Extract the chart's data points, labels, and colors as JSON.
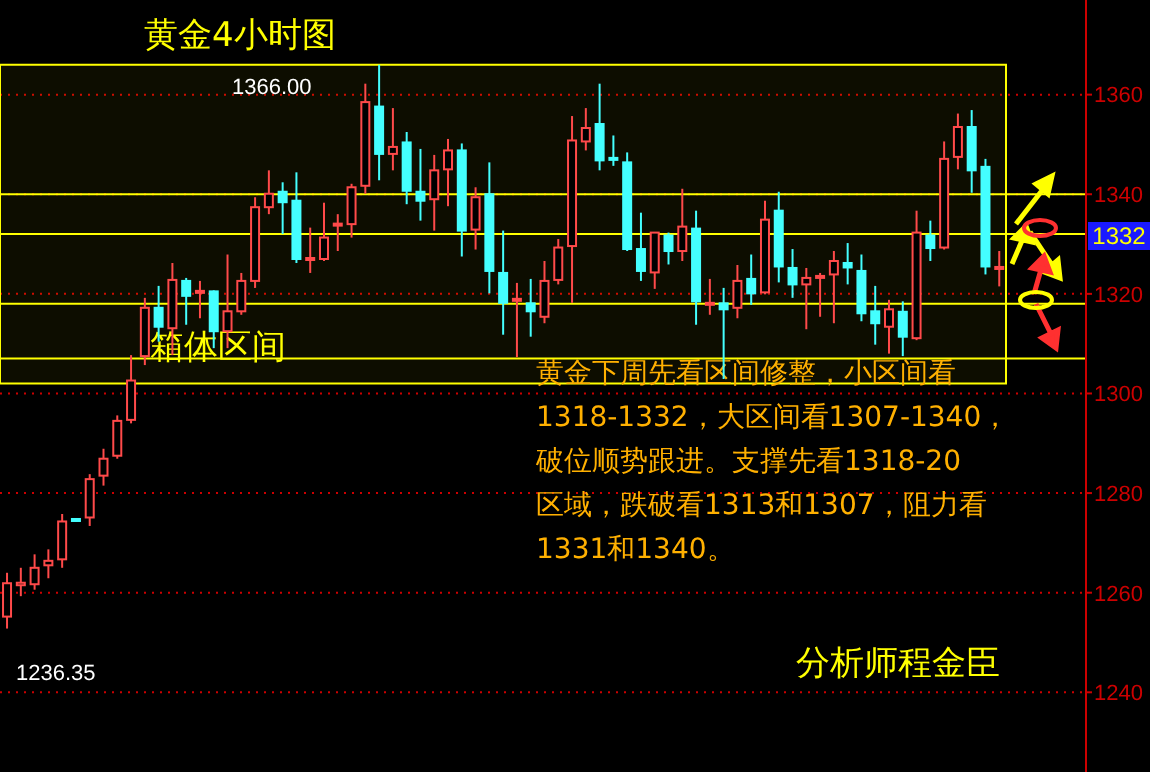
{
  "chart_data": {
    "type": "candlestick",
    "title": "黄金4小时图",
    "categories": [
      null,
      null,
      null,
      null,
      null,
      null,
      null,
      null,
      null,
      null,
      null,
      null,
      null,
      null,
      null,
      null,
      null,
      null,
      null,
      null,
      null,
      null,
      null,
      null,
      null,
      null,
      null,
      null,
      null,
      null,
      null,
      null,
      null,
      null,
      null,
      null,
      null,
      null,
      null,
      null,
      null,
      null,
      null,
      null,
      null,
      null,
      null,
      null,
      null,
      null,
      null,
      null,
      null,
      null,
      null,
      null,
      null,
      null,
      null,
      null,
      null,
      null,
      null,
      null,
      null,
      null,
      null,
      null,
      null,
      null,
      null,
      null,
      null
    ],
    "ohlc": [
      [
        1255.2,
        1264.0,
        1252.8,
        1261.9
      ],
      [
        1261.5,
        1265.0,
        1259.3,
        1262.0
      ],
      [
        1261.7,
        1267.7,
        1260.6,
        1265.0
      ],
      [
        1265.5,
        1268.7,
        1262.9,
        1266.4
      ],
      [
        1266.7,
        1275.8,
        1265.0,
        1274.3
      ],
      [
        1274.8,
        1275.0,
        1274.3,
        1274.5
      ],
      [
        1275.1,
        1283.8,
        1273.4,
        1282.8
      ],
      [
        1283.5,
        1288.9,
        1281.5,
        1286.9
      ],
      [
        1287.5,
        1295.6,
        1286.9,
        1294.5
      ],
      [
        1294.7,
        1307.7,
        1294.0,
        1302.6
      ],
      [
        1307.5,
        1319.2,
        1305.7,
        1317.2
      ],
      [
        1317.2,
        1321.6,
        1310.4,
        1313.4
      ],
      [
        1313.1,
        1326.2,
        1307.7,
        1322.8
      ],
      [
        1322.6,
        1323.2,
        1313.8,
        1319.6
      ],
      [
        1320.4,
        1322.6,
        1315.1,
        1320.6
      ],
      [
        1320.5,
        1320.7,
        1309.1,
        1312.5
      ],
      [
        1312.5,
        1327.9,
        1309.1,
        1316.5
      ],
      [
        1316.5,
        1324.2,
        1315.8,
        1322.6
      ],
      [
        1322.6,
        1339.4,
        1321.2,
        1337.4
      ],
      [
        1337.4,
        1344.8,
        1336.0,
        1340.1
      ],
      [
        1340.5,
        1342.4,
        1332.0,
        1338.4
      ],
      [
        1338.7,
        1344.4,
        1326.2,
        1327.0
      ],
      [
        1327.0,
        1333.3,
        1324.2,
        1327.2
      ],
      [
        1327.0,
        1338.3,
        1326.6,
        1331.3
      ],
      [
        1333.8,
        1336.0,
        1328.6,
        1334.1
      ],
      [
        1334.0,
        1342.1,
        1331.3,
        1341.4
      ],
      [
        1341.7,
        1362.2,
        1340.1,
        1358.5
      ],
      [
        1357.6,
        1366.0,
        1342.8,
        1348.1
      ],
      [
        1348.1,
        1357.3,
        1344.8,
        1349.5
      ],
      [
        1350.4,
        1352.5,
        1338.0,
        1340.7
      ],
      [
        1340.5,
        1349.1,
        1334.7,
        1338.7
      ],
      [
        1339.0,
        1347.9,
        1332.7,
        1344.8
      ],
      [
        1345.0,
        1351.1,
        1337.6,
        1348.8
      ],
      [
        1348.8,
        1350.2,
        1327.5,
        1332.7
      ],
      [
        1332.9,
        1341.4,
        1328.9,
        1339.4
      ],
      [
        1340.0,
        1346.4,
        1320.1,
        1324.6
      ],
      [
        1324.2,
        1332.7,
        1311.8,
        1318.2
      ],
      [
        1318.8,
        1322.2,
        1307.3,
        1319.0
      ],
      [
        1318.1,
        1323.0,
        1311.4,
        1316.5
      ],
      [
        1315.4,
        1326.6,
        1314.1,
        1322.6
      ],
      [
        1322.8,
        1331.0,
        1321.9,
        1329.3
      ],
      [
        1329.6,
        1355.7,
        1318.2,
        1350.8
      ],
      [
        1350.6,
        1357.3,
        1348.8,
        1353.3
      ],
      [
        1354.1,
        1362.2,
        1344.8,
        1346.8
      ],
      [
        1347.3,
        1351.8,
        1345.7,
        1347.1
      ],
      [
        1346.4,
        1348.4,
        1328.6,
        1329.0
      ],
      [
        1329.0,
        1336.3,
        1322.6,
        1324.6
      ],
      [
        1324.3,
        1332.3,
        1321.0,
        1332.3
      ],
      [
        1331.7,
        1332.3,
        1325.9,
        1328.6
      ],
      [
        1328.6,
        1341.1,
        1326.6,
        1333.5
      ],
      [
        1333.1,
        1336.7,
        1313.8,
        1318.5
      ],
      [
        1318.1,
        1323.0,
        1315.8,
        1318.2
      ],
      [
        1318.1,
        1321.2,
        1302.9,
        1316.9
      ],
      [
        1317.2,
        1325.8,
        1315.1,
        1322.6
      ],
      [
        1323.0,
        1327.9,
        1317.8,
        1320.1
      ],
      [
        1320.3,
        1338.7,
        1319.9,
        1334.9
      ],
      [
        1336.7,
        1340.5,
        1322.3,
        1325.5
      ],
      [
        1325.2,
        1329.0,
        1319.2,
        1321.9
      ],
      [
        1321.9,
        1325.2,
        1312.9,
        1323.2
      ],
      [
        1323.4,
        1324.2,
        1315.4,
        1323.6
      ],
      [
        1323.9,
        1328.6,
        1314.1,
        1326.6
      ],
      [
        1326.2,
        1330.2,
        1321.9,
        1325.3
      ],
      [
        1324.6,
        1327.9,
        1314.5,
        1316.1
      ],
      [
        1316.5,
        1321.6,
        1309.8,
        1314.1
      ],
      [
        1313.4,
        1318.8,
        1308.0,
        1316.9
      ],
      [
        1316.4,
        1318.5,
        1307.5,
        1311.4
      ],
      [
        1311.1,
        1336.7,
        1310.7,
        1332.3
      ],
      [
        1331.7,
        1334.7,
        1326.6,
        1329.2
      ],
      [
        1329.3,
        1350.6,
        1328.9,
        1347.1
      ],
      [
        1347.5,
        1356.2,
        1345.0,
        1353.5
      ],
      [
        1353.5,
        1356.9,
        1340.3,
        1344.8
      ],
      [
        1345.5,
        1347.1,
        1323.9,
        1325.5
      ],
      [
        1325.2,
        1328.6,
        1321.5,
        1325.4
      ]
    ],
    "ylim": [
      1224,
      1379
    ],
    "yticks": [
      1240,
      1260,
      1280,
      1300,
      1320,
      1340,
      1360
    ],
    "grid": "y",
    "tick_labels": "y",
    "ref_lines": [
      {
        "axis": "y",
        "value": 1340,
        "color": "#ffff00"
      },
      {
        "axis": "y",
        "value": 1332,
        "color": "#ffff00"
      },
      {
        "axis": "y",
        "value": 1318,
        "color": "#ffff00"
      },
      {
        "axis": "y",
        "value": 1307,
        "color": "#ffff00"
      }
    ],
    "bands": [
      {
        "axis": "y",
        "from": 1302,
        "to": 1366,
        "label": "箱体区间",
        "color": "#ffff00"
      }
    ],
    "annotations": [
      "1366.00",
      "1236.35",
      "1332",
      "黄金下周先看区间修整，小区间看",
      "1318-1332，大区间看1307-1340，",
      "破位顺势跟进。支撑先看1318-20",
      "区域，跌破看1313和1307，阻力看",
      "1331和1340。",
      "分析师程金臣"
    ]
  }
}
